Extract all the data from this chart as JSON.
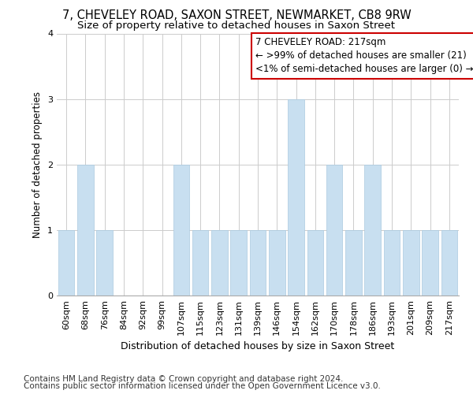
{
  "title": "7, CHEVELEY ROAD, SAXON STREET, NEWMARKET, CB8 9RW",
  "subtitle": "Size of property relative to detached houses in Saxon Street",
  "xlabel": "Distribution of detached houses by size in Saxon Street",
  "ylabel": "Number of detached properties",
  "footnote1": "Contains HM Land Registry data © Crown copyright and database right 2024.",
  "footnote2": "Contains public sector information licensed under the Open Government Licence v3.0.",
  "categories": [
    "60sqm",
    "68sqm",
    "76sqm",
    "84sqm",
    "92sqm",
    "99sqm",
    "107sqm",
    "115sqm",
    "123sqm",
    "131sqm",
    "139sqm",
    "146sqm",
    "154sqm",
    "162sqm",
    "170sqm",
    "178sqm",
    "186sqm",
    "193sqm",
    "201sqm",
    "209sqm",
    "217sqm"
  ],
  "values": [
    1,
    2,
    1,
    0,
    0,
    0,
    2,
    1,
    1,
    1,
    1,
    1,
    3,
    1,
    2,
    1,
    2,
    1,
    1,
    1,
    1
  ],
  "bar_color": "#c8dff0",
  "bar_edge_color": "#aacae0",
  "annotation_title": "7 CHEVELEY ROAD: 217sqm",
  "annotation_line1": "← >99% of detached houses are smaller (21)",
  "annotation_line2": "<1% of semi-detached houses are larger (0) →",
  "annotation_box_color": "#ffffff",
  "annotation_box_edge": "#cc0000",
  "ylim": [
    0,
    4
  ],
  "yticks": [
    0,
    1,
    2,
    3,
    4
  ],
  "background_color": "#ffffff",
  "title_fontsize": 10.5,
  "subtitle_fontsize": 9.5,
  "xlabel_fontsize": 9,
  "ylabel_fontsize": 8.5,
  "tick_fontsize": 8,
  "annotation_fontsize": 8.5,
  "footnote_fontsize": 7.5
}
